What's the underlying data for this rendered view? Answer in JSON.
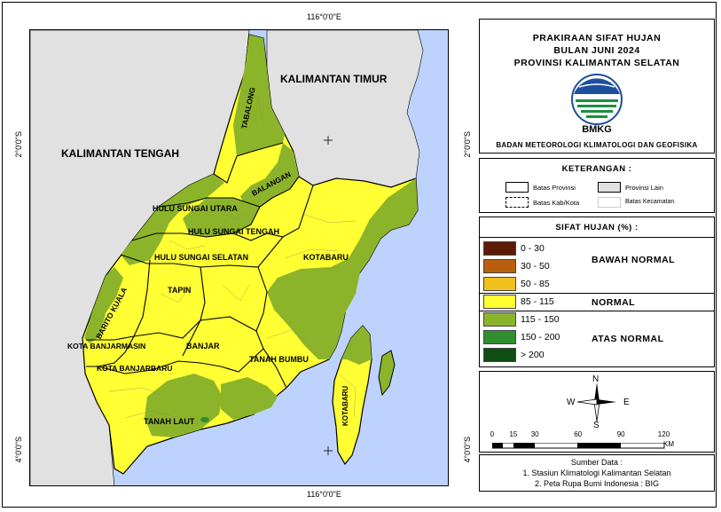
{
  "map": {
    "coords": {
      "top_lon": "116°0'0\"E",
      "bottom_lon": "116°0'0\"E",
      "left_lat_top": "2°0'0\"S",
      "left_lat_bottom": "4°0'0\"S",
      "right_lat_top": "2°0'0\"S",
      "right_lat_bottom": "4°0'0\"S"
    },
    "labels": {
      "kaltim": "KALIMANTAN TIMUR",
      "kalteng": "KALIMANTAN TENGAH",
      "tabalong": "TABALONG",
      "balangan": "BALANGAN",
      "hsu": "HULU SUNGAI UTARA",
      "hst": "HULU SUNGAI TENGAH",
      "hss": "HULU SUNGAI SELATAN",
      "kotabaru_main": "KOTABARU",
      "tapin": "TAPIN",
      "barito_kuala": "BARITO KUALA",
      "kota_banjarmasin": "KOTA BANJARMASIN",
      "banjar": "BANJAR",
      "kota_banjarbaru": "KOTA BANJARBARU",
      "tanah_bumbu": "TANAH BUMBU",
      "tanah_laut": "TANAH LAUT",
      "kotabaru_island": "KOTABARU"
    }
  },
  "title": {
    "line1": "PRAKIRAAN SIFAT HUJAN",
    "line2": "BULAN JUNI 2024",
    "line3": "PROVINSI KALIMANTAN SELATAN",
    "logo_text": "BMKG",
    "agency": "BADAN METEOROLOGI KLIMATOLOGI DAN GEOFISIKA"
  },
  "keterangan": {
    "header": "KETERANGAN :",
    "items": {
      "batas_provinsi": "Batas Provinsi",
      "provinsi_lain": "Provinsi Lain",
      "batas_kab": "Batas Kab/Kota",
      "batas_kec": "Batas Kecamatan"
    }
  },
  "sifat": {
    "header": "SIFAT HUJAN (%) :",
    "classes": [
      {
        "range": "0 - 30",
        "color": "#5c1c06"
      },
      {
        "range": "30 - 50",
        "color": "#b8600f"
      },
      {
        "range": "50 - 85",
        "color": "#f2c01e"
      },
      {
        "range": "85 - 115",
        "color": "#ffff33"
      },
      {
        "range": "115 - 150",
        "color": "#8cb42a"
      },
      {
        "range": "150 - 200",
        "color": "#2f8f30"
      },
      {
        "range": "> 200",
        "color": "#0e4d14"
      }
    ],
    "categories": {
      "bawah": "BAWAH NORMAL",
      "normal": "NORMAL",
      "atas": "ATAS NORMAL"
    }
  },
  "scale": {
    "compass": {
      "n": "N",
      "s": "S",
      "e": "E",
      "w": "W"
    },
    "ticks": [
      "0",
      "15",
      "30",
      "60",
      "90",
      "120"
    ],
    "unit": "KM"
  },
  "source": {
    "header": "Sumber Data :",
    "line1": "1. Stasiun Klimatologi Kalimantan Selatan",
    "line2": "2. Peta Rupa Bumi Indonesia : BIG"
  },
  "colors": {
    "sea": "#bed2ff",
    "other_province": "#e1e1e1",
    "normal": "#ffff33",
    "atas_normal": "#8cb42a"
  }
}
